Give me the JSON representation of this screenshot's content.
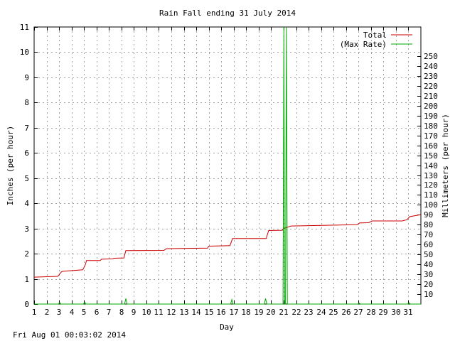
{
  "chart_data": {
    "type": "line",
    "title": "Rain Fall ending 31 July 2014",
    "xlabel": "Day",
    "ylabel": "Inches (per hour)",
    "y2label": "Millimeters (per hour)",
    "xlim": [
      1,
      32
    ],
    "ylim": [
      0,
      11
    ],
    "y2lim": [
      0,
      279.4
    ],
    "x_ticks": [
      1,
      2,
      3,
      4,
      5,
      6,
      7,
      8,
      9,
      10,
      11,
      12,
      13,
      14,
      15,
      16,
      17,
      18,
      19,
      20,
      21,
      22,
      23,
      24,
      25,
      26,
      27,
      28,
      29,
      30,
      31
    ],
    "y_ticks": [
      0,
      1,
      2,
      3,
      4,
      5,
      6,
      7,
      8,
      9,
      10,
      11
    ],
    "y2_ticks": [
      10,
      20,
      30,
      40,
      50,
      60,
      70,
      80,
      90,
      100,
      110,
      120,
      130,
      140,
      150,
      160,
      170,
      180,
      190,
      200,
      210,
      220,
      230,
      240,
      250
    ],
    "grid": true,
    "legend_position": "top-right",
    "series": [
      {
        "name": "Total",
        "color": "#cc0000",
        "x": [
          1,
          2.9,
          3.05,
          3.2,
          3.3,
          4.9,
          5.1,
          5.2,
          6.3,
          6.4,
          7.3,
          7.4,
          8.2,
          8.35,
          11.4,
          11.6,
          14.9,
          15.0,
          16.7,
          16.9,
          19.6,
          19.8,
          20.9,
          21.0,
          21.3,
          21.6,
          26.9,
          27.1,
          27.8,
          28.1,
          30.5,
          30.9,
          31.1,
          32
        ],
        "y": [
          1.07,
          1.1,
          1.2,
          1.28,
          1.3,
          1.36,
          1.55,
          1.73,
          1.73,
          1.78,
          1.8,
          1.82,
          1.83,
          2.12,
          2.13,
          2.2,
          2.22,
          2.3,
          2.32,
          2.6,
          2.6,
          2.92,
          2.93,
          3.0,
          3.05,
          3.1,
          3.15,
          3.22,
          3.23,
          3.3,
          3.3,
          3.35,
          3.47,
          3.55
        ]
      },
      {
        "name": "(Max Rate)",
        "color": "#00aa00",
        "x": [
          1,
          2.95,
          3.05,
          3.15,
          4.95,
          5.05,
          5.15,
          8.25,
          8.35,
          8.45,
          16.75,
          16.85,
          16.95,
          19.45,
          19.55,
          19.65,
          20.95,
          21.02,
          21.08,
          21.15,
          21.22,
          21.3,
          26.95,
          27.05,
          27.15,
          30.95,
          31.05,
          31.15,
          32
        ],
        "y": [
          0,
          0,
          0.06,
          0,
          0,
          0.08,
          0,
          0,
          0.22,
          0,
          0,
          0.18,
          0,
          0,
          0.22,
          0,
          0,
          11,
          0,
          0,
          11,
          0,
          0,
          0.04,
          0,
          0,
          0.05,
          0,
          0
        ]
      }
    ]
  },
  "footer": {
    "timestamp": "Fri Aug 01 00:03:02 2014"
  }
}
